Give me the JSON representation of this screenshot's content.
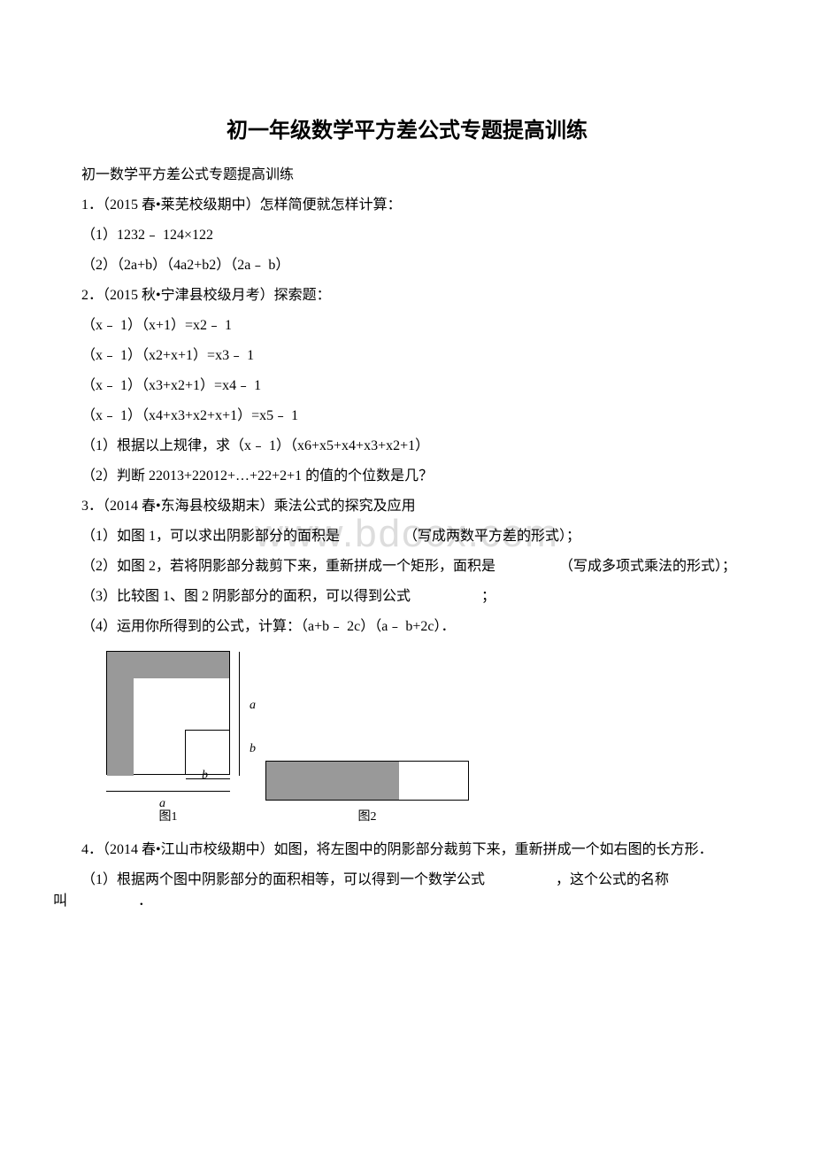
{
  "title": "初一年级数学平方差公式专题提高训练",
  "subtitle": "初一数学平方差公式专题提高训练",
  "q1_intro": "1．（2015 春•莱芜校级期中）怎样简便就怎样计算：",
  "q1_1": "（1）1232﹣ 124×122",
  "q1_2": "（2）（2a+b）（4a2+b2）（2a﹣ b）",
  "q2_intro": "2．（2015 秋•宁津县校级月考）探索题：",
  "q2_eq1": "（x﹣ 1）（x+1）=x2﹣ 1",
  "q2_eq2": "（x﹣ 1）（x2+x+1）=x3﹣ 1",
  "q2_eq3": "（x﹣ 1）（x3+x2+1）=x4﹣ 1",
  "q2_eq4": "（x﹣ 1）（x4+x3+x2+x+1）=x5﹣ 1",
  "q2_1": "（1）根据以上规律，求（x﹣ 1）（x6+x5+x4+x3+x2+1）",
  "q2_2": "（2）判断 22013+22012+…+22+2+1 的值的个位数是几？",
  "q3_intro": "3．（2014 春•东海县校级期末）乘法公式的探究及应用",
  "q3_1": "（1）如图 1，可以求出阴影部分的面积是　　　　　（写成两数平方差的形式）；",
  "q3_2": "（2）如图 2，若将阴影部分裁剪下来，重新拼成一个矩形，面积是　　　　　（写成多项式乘法的形式）；",
  "q3_3": "（3）比较图 1、图 2 阴影部分的面积，可以得到公式　　　　　；",
  "q3_4": "（4）运用你所得到的公式，计算：（a+b﹣ 2c）（a﹣ b+2c）．",
  "fig1_caption": "图1",
  "fig2_caption": "图2",
  "label_a": "a",
  "label_b": "b",
  "q4_intro": "4．（2014 春•江山市校级期中）如图，将左图中的阴影部分裁剪下来，重新拼成一个如右图的长方形．",
  "q4_1": "（1）根据两个图中阴影部分的面积相等，可以得到一个数学公式　　　　　，这个公式的名称叫　　　　　．",
  "watermark": "www.bdocx.com",
  "colors": {
    "shade": "#999999",
    "bg": "#ffffff",
    "text": "#000000",
    "watermark": "#dddddd"
  }
}
